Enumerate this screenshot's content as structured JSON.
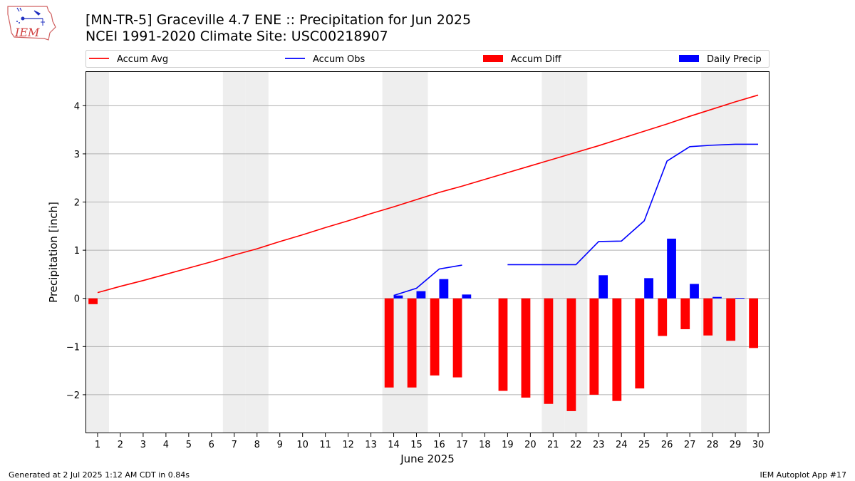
{
  "header": {
    "title_line1": "[MN-TR-5] Graceville 4.7 ENE :: Precipitation for Jun 2025",
    "title_line2": "NCEI 1991-2020 Climate Site: USC00218907",
    "logo_text": "IEM"
  },
  "footer": {
    "left": "Generated at 2 Jul 2025 1:12 AM CDT in 0.84s",
    "right": "IEM Autoplot App #17"
  },
  "colors": {
    "avg": "#ff0000",
    "obs": "#0000ff",
    "diff": "#ff0000",
    "daily": "#0000ff",
    "weekend": "#eeeeee",
    "grid": "#b0b0b0"
  },
  "chart_data": {
    "type": "bar",
    "xlabel": "June 2025",
    "ylabel": "Precipitation [inch]",
    "ylim": [
      -2.8,
      4.7
    ],
    "yticks": [
      -2,
      -1,
      0,
      1,
      2,
      3,
      4
    ],
    "ytick_labels": [
      "−2",
      "−1",
      "0",
      "1",
      "2",
      "3",
      "4"
    ],
    "xlim": [
      0.5,
      30.5
    ],
    "days": [
      1,
      2,
      3,
      4,
      5,
      6,
      7,
      8,
      9,
      10,
      11,
      12,
      13,
      14,
      15,
      16,
      17,
      18,
      19,
      20,
      21,
      22,
      23,
      24,
      25,
      26,
      27,
      28,
      29,
      30
    ],
    "weekend_days": [
      1,
      7,
      8,
      14,
      15,
      21,
      22,
      28,
      29
    ],
    "grid": true,
    "legend_position": "top (above plot)",
    "legend": [
      {
        "label": "Accum Avg",
        "kind": "line",
        "color": "#ff0000"
      },
      {
        "label": "Accum Obs",
        "kind": "line",
        "color": "#0000ff"
      },
      {
        "label": "Accum Diff",
        "kind": "bar",
        "color": "#ff0000"
      },
      {
        "label": "Daily Precip",
        "kind": "bar",
        "color": "#0000ff"
      }
    ],
    "series": [
      {
        "name": "Accum Avg",
        "type": "line",
        "color": "#ff0000",
        "x": [
          1,
          2,
          3,
          4,
          5,
          6,
          7,
          8,
          9,
          10,
          11,
          12,
          13,
          14,
          15,
          16,
          17,
          18,
          19,
          20,
          21,
          22,
          23,
          24,
          25,
          26,
          27,
          28,
          29,
          30
        ],
        "values": [
          0.12,
          0.25,
          0.37,
          0.5,
          0.63,
          0.76,
          0.9,
          1.03,
          1.18,
          1.32,
          1.47,
          1.61,
          1.76,
          1.9,
          2.05,
          2.2,
          2.33,
          2.47,
          2.61,
          2.75,
          2.89,
          3.03,
          3.17,
          3.32,
          3.47,
          3.62,
          3.78,
          3.93,
          4.08,
          4.22
        ]
      },
      {
        "name": "Accum Obs",
        "type": "line",
        "color": "#0000ff",
        "segments": [
          {
            "x": [
              14,
              15,
              16,
              17
            ],
            "values": [
              0.06,
              0.21,
              0.61,
              0.69
            ]
          },
          {
            "x": [
              19,
              20,
              21,
              22,
              23,
              24,
              25,
              26,
              27,
              28,
              29,
              30
            ],
            "values": [
              0.7,
              0.7,
              0.7,
              0.7,
              1.18,
              1.19,
              1.61,
              2.85,
              3.15,
              3.18,
              3.2,
              3.2
            ]
          }
        ]
      },
      {
        "name": "Accum Diff",
        "type": "bar",
        "color": "#ff0000",
        "x": [
          1,
          14,
          15,
          16,
          17,
          19,
          20,
          21,
          22,
          23,
          24,
          25,
          26,
          27,
          28,
          29,
          30
        ],
        "values": [
          -0.12,
          -1.85,
          -1.85,
          -1.6,
          -1.64,
          -1.92,
          -2.06,
          -2.19,
          -2.34,
          -2.0,
          -2.13,
          -1.87,
          -0.78,
          -0.64,
          -0.77,
          -0.88,
          -1.03
        ]
      },
      {
        "name": "Daily Precip",
        "type": "bar",
        "color": "#0000ff",
        "x": [
          14,
          15,
          16,
          17,
          23,
          25,
          26,
          27,
          28,
          29
        ],
        "values": [
          0.06,
          0.15,
          0.4,
          0.08,
          0.48,
          0.42,
          1.24,
          0.3,
          0.03,
          0.01
        ]
      }
    ]
  }
}
